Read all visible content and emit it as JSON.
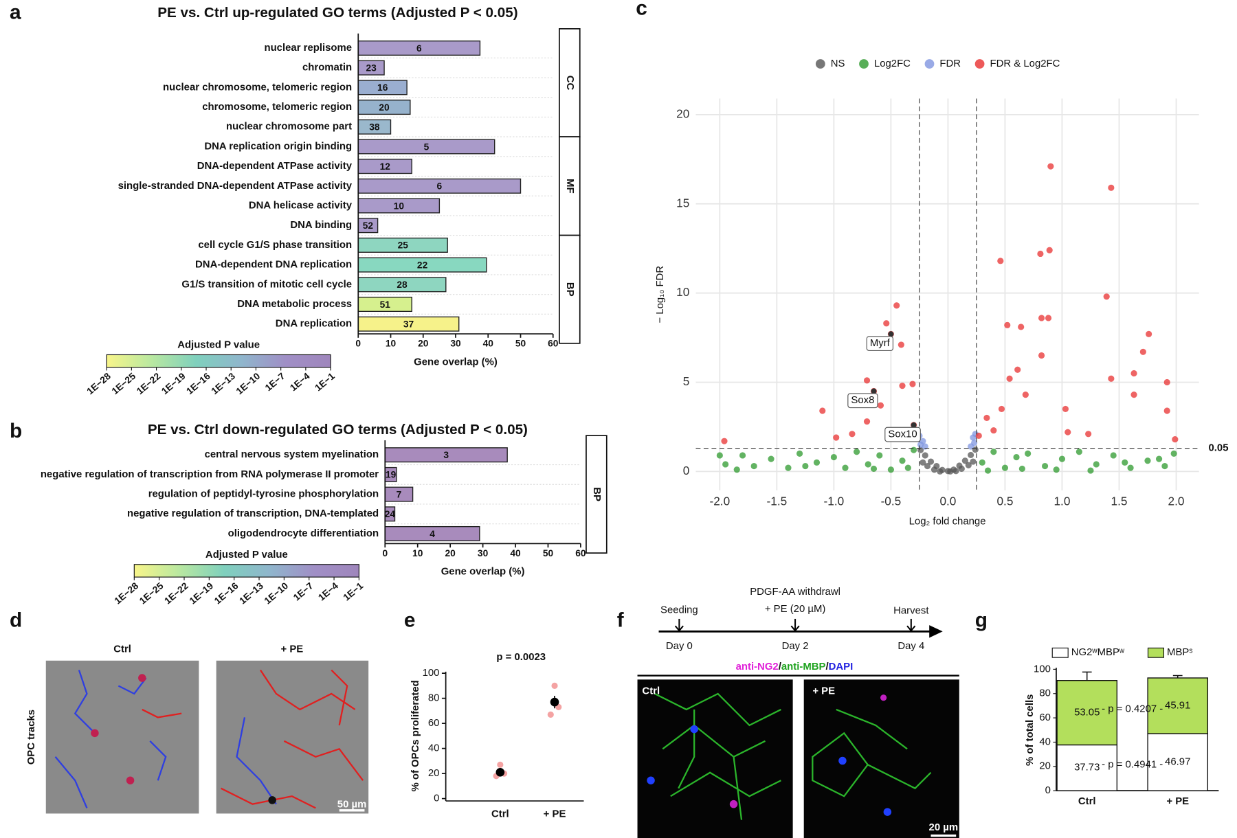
{
  "panel_labels": [
    "a",
    "b",
    "c",
    "d",
    "e",
    "f",
    "g"
  ],
  "chart_data": [
    {
      "type": "hbar",
      "title": "PE vs. Ctrl up-regulated GO terms (Adjusted P < 0.05)",
      "categories": [
        "nuclear replisome",
        "chromatin",
        "nuclear chromosome, telomeric region",
        "chromosome, telomeric region",
        "nuclear chromosome part",
        "DNA replication origin binding",
        "DNA-dependent ATPase activity",
        "single-stranded DNA-dependent ATPase activity",
        "DNA helicase activity",
        "DNA binding",
        "cell cycle G1/S phase transition",
        "DNA-dependent DNA replication",
        "G1/S transition of mitotic cell cycle",
        "DNA metabolic process",
        "DNA replication"
      ],
      "values": [
        37.5,
        8,
        15,
        16,
        10,
        42,
        16.5,
        50,
        25,
        6,
        27.5,
        39.5,
        27,
        16.5,
        31
      ],
      "counts": [
        6,
        23,
        16,
        20,
        38,
        5,
        12,
        6,
        10,
        52,
        25,
        22,
        28,
        51,
        37
      ],
      "colors": [
        "#a99ac9",
        "#a99ac9",
        "#9aaed0",
        "#96b2cc",
        "#9ab8cc",
        "#a99ac9",
        "#a99ac9",
        "#a99ac9",
        "#a99ac9",
        "#a99ac9",
        "#8ed6c0",
        "#88d8c0",
        "#8ed6c0",
        "#d6f08e",
        "#f6f28a"
      ],
      "groups": [
        "CC",
        "CC",
        "CC",
        "CC",
        "CC",
        "MF",
        "MF",
        "MF",
        "MF",
        "MF",
        "BP",
        "BP",
        "BP",
        "BP",
        "BP"
      ],
      "xlabel": "Gene overlap (%)",
      "xlim": [
        0,
        60
      ],
      "xticks": [
        0,
        10,
        20,
        30,
        40,
        50,
        60
      ],
      "colorbar": {
        "title": "Adjusted P value",
        "log": true,
        "lim": [
          1e-28,
          0.1
        ],
        "colors": [
          "#f8f58a",
          "#b9e8a0",
          "#7fd0bd",
          "#8fb6cc",
          "#a08fc6",
          "#9f86bc"
        ],
        "ticks": [
          {
            "value": 1e-28,
            "label": "1E−28"
          },
          {
            "value": 1e-25,
            "label": "1E−25"
          },
          {
            "value": 1e-22,
            "label": "1E−22"
          },
          {
            "value": 1e-19,
            "label": "1E−19"
          },
          {
            "value": 1e-16,
            "label": "1E−16"
          },
          {
            "value": 1e-13,
            "label": "1E−13"
          },
          {
            "value": 1e-10,
            "label": "1E−10"
          },
          {
            "value": 1e-07,
            "label": "1E−7"
          },
          {
            "value": 0.0001,
            "label": "1E−4"
          },
          {
            "value": 0.1,
            "label": "1E−1"
          }
        ]
      }
    },
    {
      "type": "hbar",
      "title": "PE vs. Ctrl down-regulated GO terms (Adjusted P < 0.05)",
      "categories": [
        "central nervous system myelination",
        "negative regulation of transcription from RNA polymerase II promoter",
        "regulation of peptidyl-tyrosine phosphorylation",
        "negative regulation of transcription, DNA-templated",
        "oligodendrocyte differentiation"
      ],
      "values": [
        37.5,
        3.5,
        8.5,
        3,
        29
      ],
      "counts": [
        3,
        19,
        7,
        24,
        4
      ],
      "colors": [
        "#a88bbc",
        "#a88bbc",
        "#a88bbc",
        "#a88bbc",
        "#a88bbc"
      ],
      "groups": [
        "BP",
        "BP",
        "BP",
        "BP",
        "BP"
      ],
      "xlabel": "Gene overlap (%)",
      "xlim": [
        0,
        60
      ],
      "xticks": [
        0,
        10,
        20,
        30,
        40,
        50,
        60
      ],
      "colorbar": {
        "title": "Adjusted P value",
        "log": true,
        "lim": [
          1e-28,
          0.1
        ],
        "colors": [
          "#f8f58a",
          "#b9e8a0",
          "#7fd0bd",
          "#8fb6cc",
          "#a08fc6",
          "#9f86bc"
        ],
        "ticks": [
          {
            "value": 1e-28,
            "label": "1E−28"
          },
          {
            "value": 1e-25,
            "label": "1E−25"
          },
          {
            "value": 1e-22,
            "label": "1E−22"
          },
          {
            "value": 1e-19,
            "label": "1E−19"
          },
          {
            "value": 1e-16,
            "label": "1E−16"
          },
          {
            "value": 1e-13,
            "label": "1E−13"
          },
          {
            "value": 1e-10,
            "label": "1E−10"
          },
          {
            "value": 1e-07,
            "label": "1E−7"
          },
          {
            "value": 0.0001,
            "label": "1E−4"
          },
          {
            "value": 0.1,
            "label": "1E−1"
          }
        ]
      }
    },
    {
      "type": "volcano",
      "xlabel": "Log₂ fold change",
      "ylabel": "− Log₁₀ FDR",
      "xlim": [
        -2.21,
        2.2
      ],
      "ylim": [
        -1.06,
        20.9
      ],
      "xticks": [
        {
          "value": -2,
          "label": "-2.0"
        },
        {
          "value": -1.5,
          "label": "-1.5"
        },
        {
          "value": -1,
          "label": "-1.0"
        },
        {
          "value": -0.5,
          "label": "-0.5"
        },
        {
          "value": 0,
          "label": "0.0"
        },
        {
          "value": 0.5,
          "label": "0.5"
        },
        {
          "value": 1,
          "label": "1.0"
        },
        {
          "value": 1.5,
          "label": "1.5"
        },
        {
          "value": 2,
          "label": "2.0"
        }
      ],
      "yticks": [
        0,
        5,
        10,
        15,
        20
      ],
      "grid": true,
      "legend": "top",
      "fdr_threshold": 0.05,
      "log2fc_threshold": 0.25,
      "series": [
        {
          "name": "NS",
          "color": "#555555",
          "x": [
            0,
            -0.05,
            0.05,
            -0.1,
            0.1,
            -0.15,
            0.15,
            -0.2,
            0.2,
            -0.24,
            0.24,
            -0.12,
            0.12,
            -0.18,
            0.18,
            -0.07,
            0.07,
            -0.22,
            0.22,
            0.02
          ],
          "y": [
            0.02,
            0.08,
            0.1,
            0.3,
            0.32,
            0.55,
            0.6,
            0.9,
            0.92,
            1.2,
            1.22,
            0.1,
            0.15,
            0.3,
            0.35,
            0.0,
            0.02,
            0.5,
            0.55,
            0.0
          ]
        },
        {
          "name": "Log2FC",
          "color": "#2e9a2e",
          "x": [
            -2.0,
            -1.95,
            -1.8,
            -1.7,
            -1.55,
            -1.4,
            -1.3,
            -1.15,
            -1.0,
            -0.9,
            -0.8,
            -0.7,
            -0.6,
            -0.5,
            -0.4,
            -0.3,
            -1.85,
            -1.25,
            -0.65,
            -0.35,
            0.3,
            0.4,
            0.5,
            0.6,
            0.7,
            0.85,
            1.0,
            1.15,
            1.3,
            1.45,
            1.6,
            1.75,
            1.9,
            1.98,
            0.35,
            0.95,
            1.55,
            0.65,
            1.25,
            1.85
          ],
          "y": [
            0.9,
            0.4,
            0.9,
            0.3,
            0.7,
            0.2,
            1.0,
            0.5,
            0.8,
            0.2,
            1.1,
            0.4,
            0.9,
            0.1,
            0.6,
            1.2,
            0.1,
            0.3,
            0.15,
            0.2,
            0.5,
            1.1,
            0.2,
            0.8,
            1.0,
            0.3,
            0.7,
            1.1,
            0.4,
            0.9,
            0.2,
            0.6,
            0.3,
            1.0,
            0.05,
            0.1,
            0.5,
            0.15,
            0.05,
            0.7
          ]
        },
        {
          "name": "FDR",
          "color": "#7f95e0",
          "x": [
            -0.24,
            -0.22,
            -0.25,
            0.23,
            0.24,
            0.2,
            0.22,
            -0.2
          ],
          "y": [
            1.5,
            1.7,
            2.0,
            1.6,
            2.1,
            1.4,
            1.9,
            1.4
          ]
        },
        {
          "name": "FDR & Log2FC",
          "color": "#e83030",
          "x": [
            0.9,
            1.43,
            0.89,
            0.81,
            0.46,
            1.39,
            -0.45,
            1.76,
            -0.54,
            1.71,
            0.52,
            0.64,
            0.82,
            0.88,
            -0.41,
            1.92,
            1.43,
            1.63,
            1.63,
            1.92,
            -0.71,
            -1.1,
            -0.31,
            -0.4,
            -0.71,
            -0.59,
            0.54,
            1.05,
            1.99,
            -1.96,
            0.34,
            0.68,
            1.03,
            0.4,
            0.82,
            0.61,
            0.27,
            -0.84,
            -0.98,
            -0.35,
            1.23,
            0.47,
            -0.5,
            -0.65,
            -0.3
          ],
          "y": [
            17.1,
            15.9,
            12.4,
            12.2,
            11.8,
            9.8,
            9.3,
            7.7,
            8.3,
            6.7,
            8.2,
            8.1,
            8.6,
            8.6,
            7.1,
            5.0,
            5.2,
            5.5,
            4.3,
            3.4,
            5.1,
            3.4,
            4.9,
            4.8,
            2.8,
            3.7,
            5.2,
            2.2,
            1.8,
            1.7,
            3.0,
            4.3,
            3.5,
            2.3,
            6.5,
            5.7,
            2.0,
            2.1,
            1.9,
            2.3,
            2.1,
            3.5,
            7.7,
            4.5,
            2.6
          ]
        }
      ],
      "gene_labels": [
        {
          "text": "Myrf",
          "x": -0.5,
          "y": 7.7
        },
        {
          "text": "Sox8",
          "x": -0.65,
          "y": 4.5
        },
        {
          "text": "Sox10",
          "x": -0.3,
          "y": 2.6
        }
      ]
    },
    {
      "type": "dot",
      "title": "p = 0.0023",
      "ylabel": "% of OPCs proliferated",
      "categories": [
        "Ctrl",
        "+ PE"
      ],
      "points": [
        [
          18,
          27,
          20
        ],
        [
          67,
          90,
          73
        ]
      ],
      "means": [
        21,
        77
      ],
      "errors": [
        3,
        5
      ],
      "point_color": "#f4a3a3",
      "mean_color": "#000000",
      "ylim": [
        0,
        100
      ],
      "yticks": [
        0,
        20,
        40,
        60,
        80,
        100
      ]
    },
    {
      "type": "stacked_bar",
      "ylabel": "% of total cells",
      "categories": [
        "Ctrl",
        "+ PE"
      ],
      "series": [
        {
          "name": "NG2ʷMBPʷ",
          "color": "#ffffff",
          "values": [
            37.73,
            46.97
          ],
          "errors": [
            11,
            3
          ],
          "p_label": "- p = 0.4941 -"
        },
        {
          "name": "MBPˢ",
          "color": "#b3df5c",
          "values": [
            53.05,
            45.91
          ],
          "errors": [
            7,
            2
          ],
          "p_label": "- p = 0.4207 -"
        }
      ],
      "ylim": [
        0,
        100
      ],
      "yticks": [
        0,
        20,
        40,
        60,
        80,
        100
      ],
      "legend": "top"
    }
  ],
  "panel_d": {
    "ylabel": "OPC tracks",
    "conditions": [
      "Ctrl",
      "+ PE"
    ],
    "scale_bar": "50 µm"
  },
  "panel_f": {
    "timeline": [
      {
        "above": [
          "Seeding"
        ],
        "below": "Day 0"
      },
      {
        "above": [
          "PDGF-AA withdrawl",
          "+ PE (20 µM)"
        ],
        "below": "Day 2"
      },
      {
        "above": [
          "Harvest"
        ],
        "below": "Day 4"
      }
    ],
    "stain": [
      {
        "text": "anti-NG2",
        "color": "#e020d8"
      },
      {
        "text": "/",
        "color": "#111111"
      },
      {
        "text": "anti-MBP",
        "color": "#1fa31f"
      },
      {
        "text": "/",
        "color": "#111111"
      },
      {
        "text": "DAPI",
        "color": "#1f1fe0"
      }
    ],
    "conditions": [
      "Ctrl",
      "+ PE"
    ],
    "scale_bar": "20 µm"
  }
}
